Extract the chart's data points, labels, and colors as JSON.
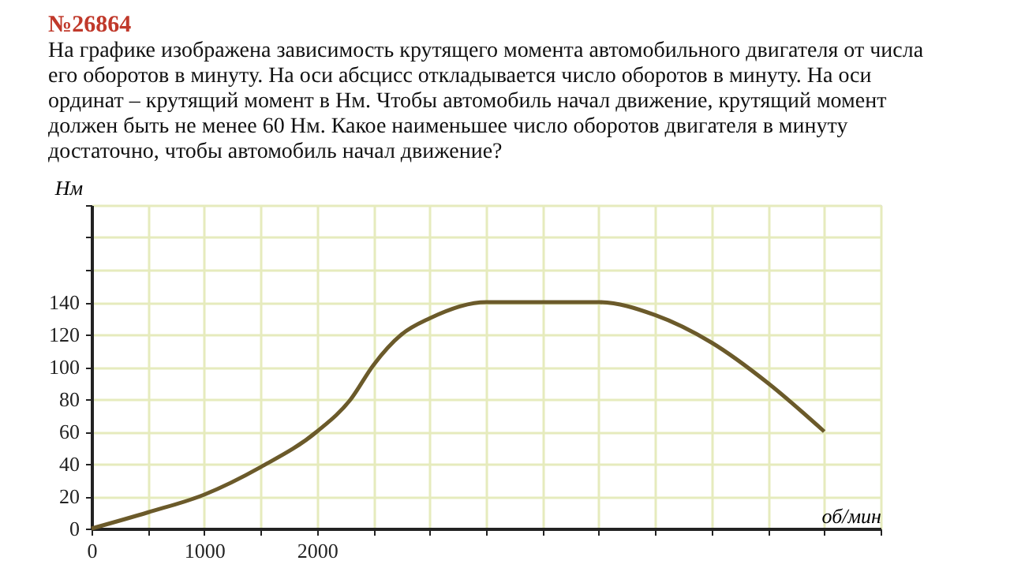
{
  "chart_data": {
    "type": "line",
    "title": "№26864",
    "subtitle": "На графике изображена зависимость крутящего момента автомобильного двигателя от числа его оборотов в минуту. На оси абсцисс откладывается число оборотов в минуту. На оси ординат – крутящий момент в Нм. Чтобы автомобиль начал движение, крутящий момент должен быть не менее 60 Нм. Какое наименьшее число оборотов двигателя в минуту достаточно, чтобы автомобиль начал движение?",
    "xlabel": "об/мин",
    "ylabel": "Нм",
    "x": [
      0,
      500,
      1000,
      1500,
      2000,
      2300,
      2500,
      2750,
      3000,
      3500,
      4000,
      4500,
      5000,
      5500,
      6000,
      6500
    ],
    "series": [
      {
        "color": "#6b5a2a",
        "values": [
          0,
          10,
          21,
          38,
          60,
          80,
          101,
          120,
          130,
          140,
          140,
          140,
          132,
          115,
          90,
          60
        ]
      }
    ],
    "xlim": [
      0,
      7000
    ],
    "ylim": [
      0,
      200
    ],
    "xticks": [
      0,
      {
        "value": 500,
        "label": null
      },
      1000,
      {
        "value": 1500,
        "label": null
      },
      2000,
      {
        "value": 2500,
        "label": null
      },
      {
        "value": 3000,
        "label": null
      },
      {
        "value": 3500,
        "label": null
      },
      {
        "value": 4000,
        "label": null
      },
      {
        "value": 4500,
        "label": null
      },
      {
        "value": 5000,
        "label": null
      },
      {
        "value": 5500,
        "label": null
      },
      {
        "value": 6000,
        "label": null
      },
      {
        "value": 6500,
        "label": null
      },
      {
        "value": 7000,
        "label": null
      }
    ],
    "yticks": [
      0,
      20,
      40,
      60,
      80,
      100,
      120,
      140,
      {
        "value": 160,
        "label": null
      },
      {
        "value": 180,
        "label": null
      },
      {
        "value": 200,
        "label": null
      }
    ],
    "grid": true,
    "marker": "none",
    "line_style": "solid"
  }
}
